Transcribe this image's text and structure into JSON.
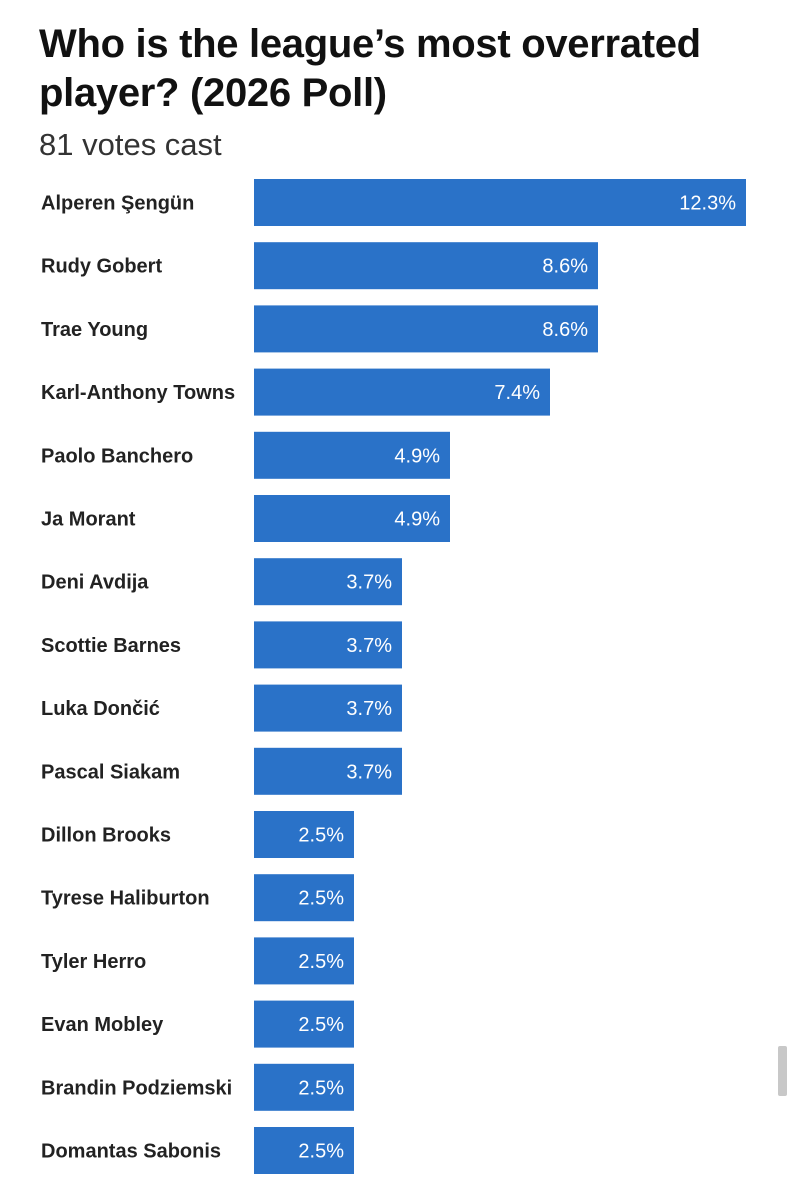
{
  "chart_data": {
    "type": "bar",
    "orientation": "horizontal",
    "title": "Who is the league’s most overrated player? (2026 Poll)",
    "subtitle": "81 votes cast",
    "categories": [
      "Alperen Şengün",
      "Rudy Gobert",
      "Trae Young",
      "Karl-Anthony Towns",
      "Paolo Banchero",
      "Ja Morant",
      "Deni Avdija",
      "Scottie Barnes",
      "Luka Dončić",
      "Pascal Siakam",
      "Dillon Brooks",
      "Tyrese Haliburton",
      "Tyler Herro",
      "Evan Mobley",
      "Brandin Podziemski",
      "Domantas Sabonis"
    ],
    "values": [
      12.3,
      8.6,
      8.6,
      7.4,
      4.9,
      4.9,
      3.7,
      3.7,
      3.7,
      3.7,
      2.5,
      2.5,
      2.5,
      2.5,
      2.5,
      2.5
    ],
    "value_labels": [
      "12.3%",
      "8.6%",
      "8.6%",
      "7.4%",
      "4.9%",
      "4.9%",
      "3.7%",
      "3.7%",
      "3.7%",
      "3.7%",
      "2.5%",
      "2.5%",
      "2.5%",
      "2.5%",
      "2.5%",
      "2.5%"
    ],
    "bar_color": "#2a72c8",
    "label_color": "#ffffff",
    "grid": false,
    "legend": "none"
  }
}
